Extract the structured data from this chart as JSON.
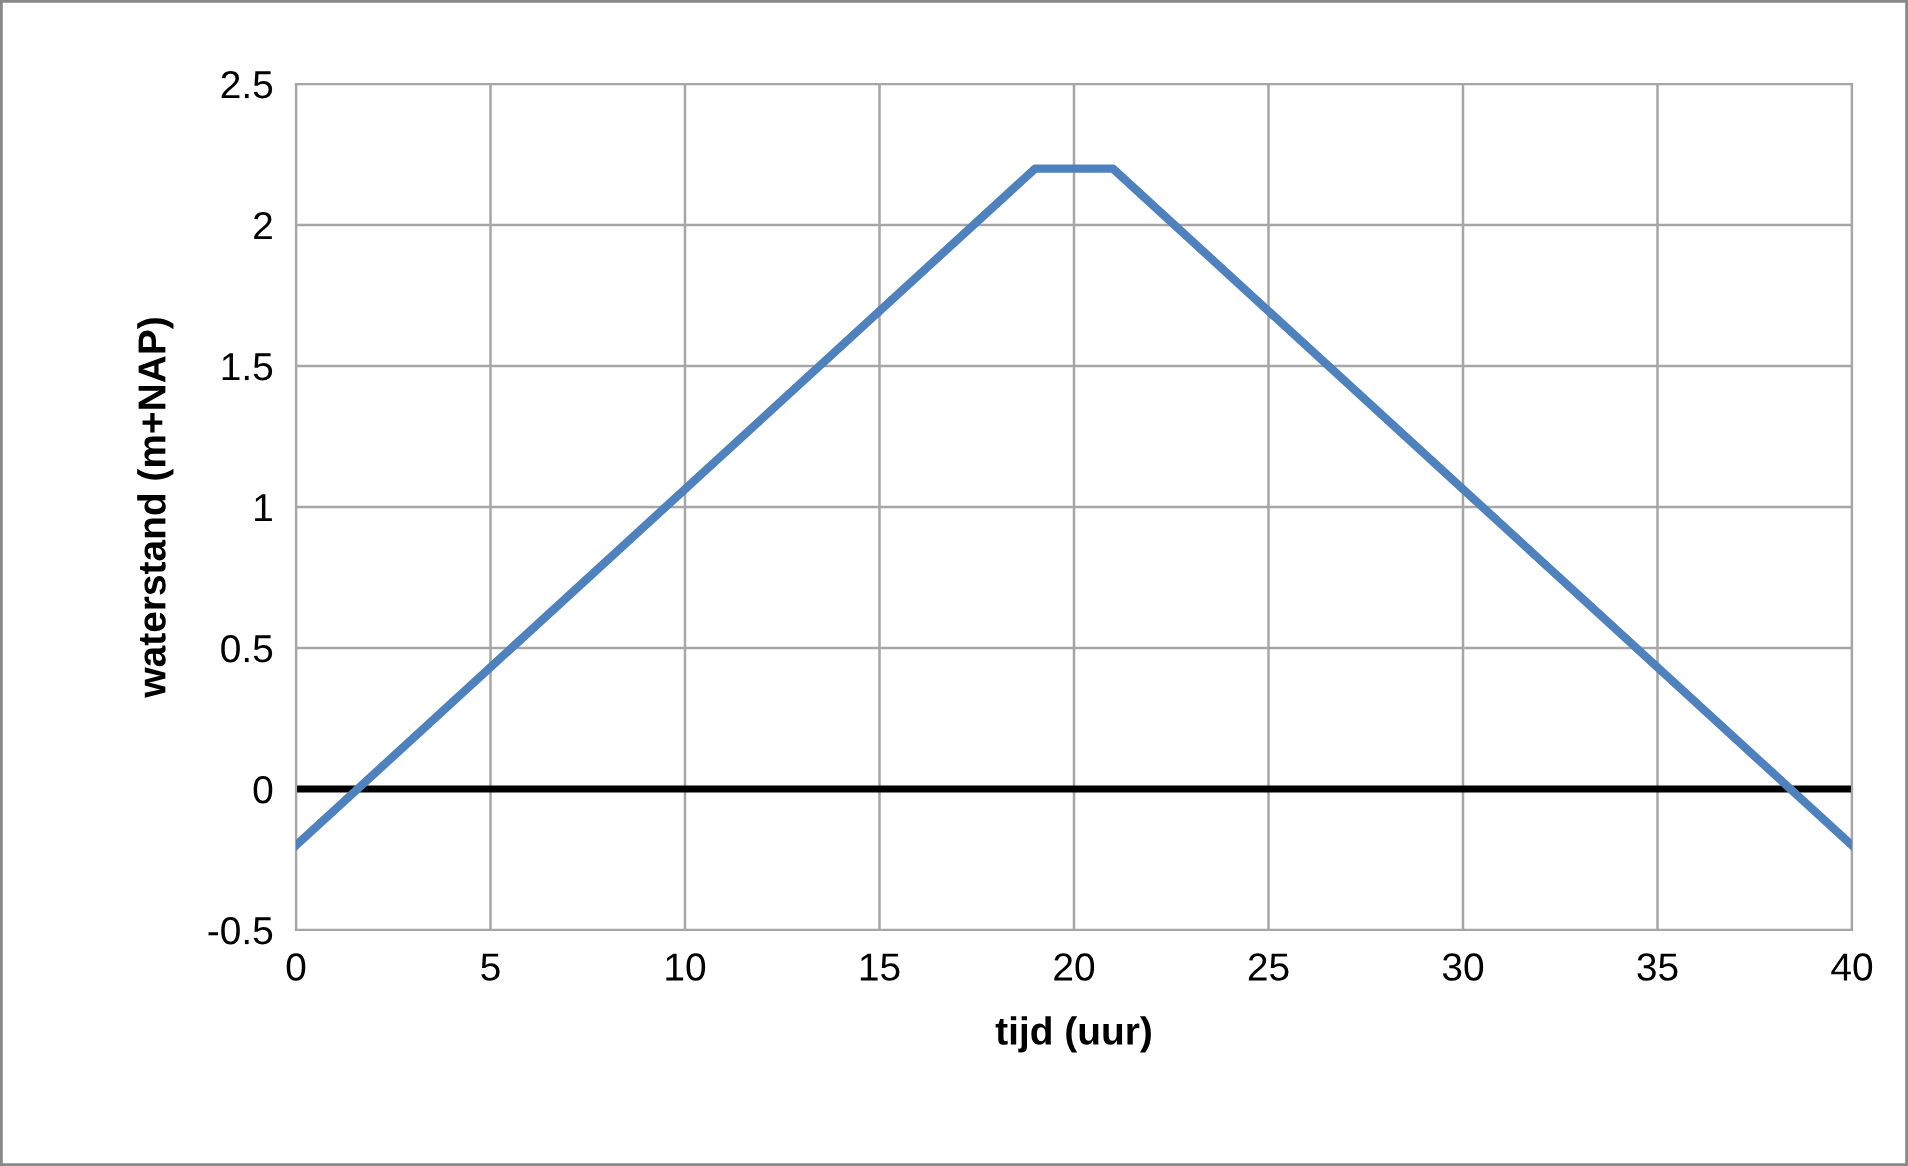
{
  "chart_data": {
    "type": "line",
    "xlabel": "tijd (uur)",
    "ylabel": "waterstand (m+NAP)",
    "x": [
      0,
      19,
      21,
      40
    ],
    "series": [
      {
        "color": "#4f81bd",
        "values": [
          -0.2,
          2.2,
          2.2,
          -0.2
        ]
      }
    ],
    "xlim": [
      0,
      40
    ],
    "xticks": [
      0,
      5,
      10,
      15,
      20,
      25,
      30,
      35,
      40
    ],
    "ylim": [
      -0.5,
      2.5
    ],
    "yticks": [
      {
        "value": -0.5,
        "label": "-0.5"
      },
      0,
      0.5,
      1,
      1.5,
      2,
      2.5
    ],
    "ref_lines": [
      {
        "axis": "y",
        "value": 0,
        "color": "#000000"
      }
    ],
    "grid": true,
    "marker": "none",
    "line_style": "solid",
    "legend": false
  }
}
